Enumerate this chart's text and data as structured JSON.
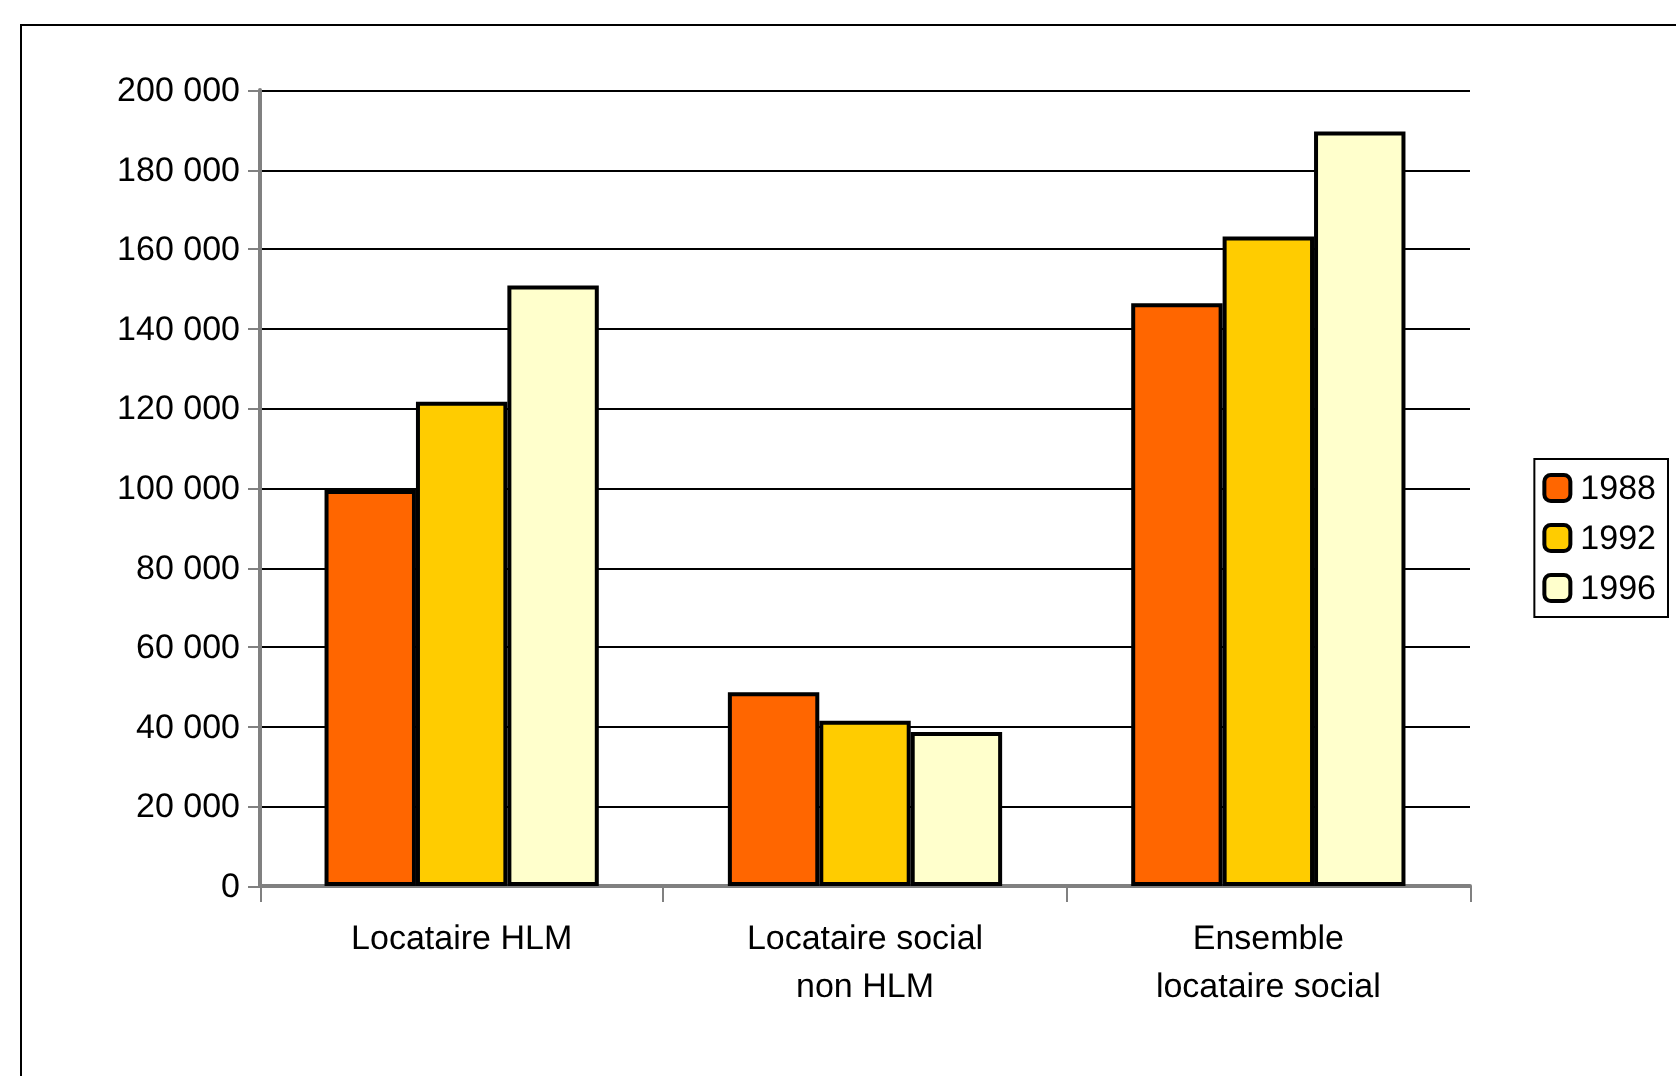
{
  "chart_data": {
    "type": "bar",
    "categories": [
      "Locataire HLM",
      "Locataire social\nnon HLM",
      "Ensemble\nlocataire social"
    ],
    "series": [
      {
        "name": "1988",
        "color": "#ff6600",
        "values": [
          99500,
          48700,
          146400
        ]
      },
      {
        "name": "1992",
        "color": "#ffcc00",
        "values": [
          121700,
          41500,
          163200
        ]
      },
      {
        "name": "1996",
        "color": "#ffffcc",
        "values": [
          150900,
          38700,
          189600
        ]
      }
    ],
    "ylim": [
      0,
      200000
    ],
    "yticks": [
      0,
      20000,
      40000,
      60000,
      80000,
      100000,
      120000,
      140000,
      160000,
      180000,
      200000
    ],
    "grid": "y",
    "legend": "right"
  }
}
